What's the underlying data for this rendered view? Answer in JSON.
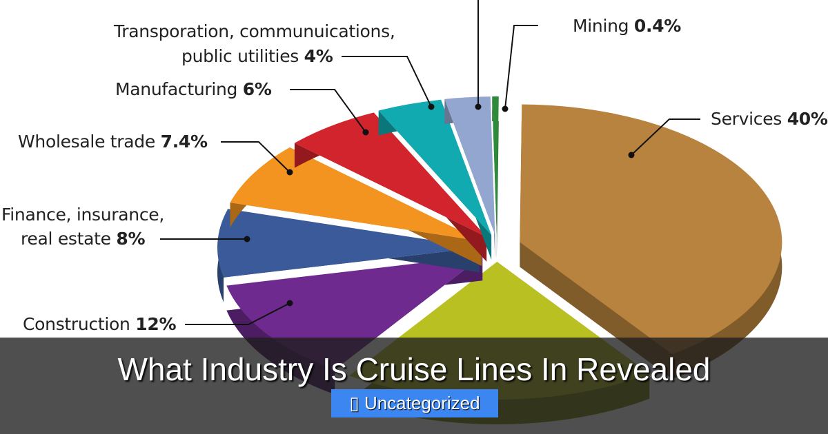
{
  "chart_data": {
    "type": "pie",
    "style": "3d-exploded",
    "slices": [
      {
        "label": "Mining",
        "value_text": "0.4%",
        "value": 0.4,
        "color": "#2e8b3a"
      },
      {
        "label": "Services",
        "value_text": "40%",
        "value": 40,
        "color": "#b8833e"
      },
      {
        "label": "",
        "value_text": "",
        "value": 19.4,
        "color": "#b9c022"
      },
      {
        "label": "Construction",
        "value_text": "12%",
        "value": 12,
        "color": "#6e2a8e"
      },
      {
        "label": "Finance, insurance, real estate",
        "value_text": "8%",
        "value": 8,
        "color": "#3a5a9a"
      },
      {
        "label": "Wholesale trade",
        "value_text": "7.4%",
        "value": 7.4,
        "color": "#f39320"
      },
      {
        "label": "Manufacturing",
        "value_text": "6%",
        "value": 6,
        "color": "#d2242c"
      },
      {
        "label": "Transporation, communuications, public utilities",
        "value_text": "4%",
        "value": 4,
        "color": "#10aab0"
      },
      {
        "label": "",
        "value_text": "",
        "value": 2.8,
        "color": "#93a6d0"
      }
    ]
  },
  "labels": {
    "mining": {
      "name": "Mining",
      "value": "0.4%"
    },
    "services": {
      "name": "Services",
      "value": "40%"
    },
    "transport": {
      "line1": "Transporation, communuications,",
      "line2": "public utilities",
      "value": "4%"
    },
    "manufacturing": {
      "name": "Manufacturing",
      "value": "6%"
    },
    "wholesale": {
      "name": "Wholesale trade",
      "value": "7.4%"
    },
    "finance": {
      "line1": "Finance, insurance,",
      "line2": "real estate",
      "value": "8%"
    },
    "construction": {
      "name": "Construction",
      "value": "12%"
    }
  },
  "overlay": {
    "title": "What Industry Is Cruise Lines In Revealed",
    "category_icon": "folder-icon",
    "category_icon_glyph": "▯",
    "category": "Uncategorized"
  }
}
